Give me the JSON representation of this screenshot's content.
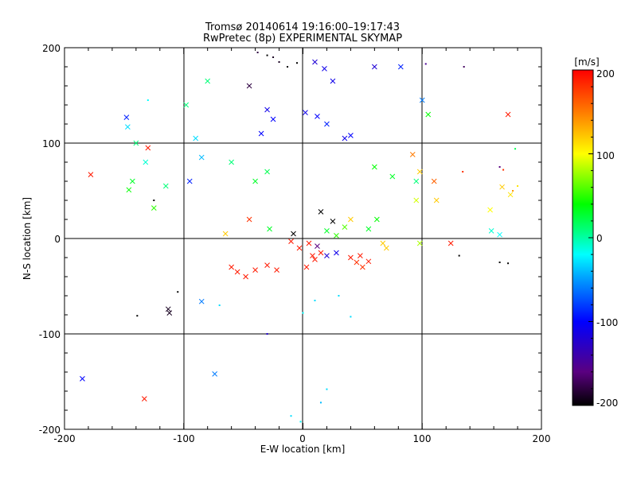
{
  "chart_data": {
    "type": "scatter",
    "title": "Tromsø 20140614 19:16:00–19:17:43",
    "subtitle": "RwPretec (8p) EXPERIMENTAL SKYMAP",
    "xlabel": "E-W location [km]",
    "ylabel": "N-S location [km]",
    "xlim": [
      -200,
      200
    ],
    "ylim": [
      -200,
      200
    ],
    "x_ticks": [
      "-200",
      "-100",
      "0",
      "100",
      "200"
    ],
    "y_ticks": [
      "200",
      "100",
      "0",
      "-100",
      "-200"
    ],
    "grid": true,
    "colorbar": {
      "unit": "[m/s]",
      "min": -200,
      "max": 200,
      "ticks": [
        "200",
        "100",
        "0",
        "-100",
        "-200"
      ]
    },
    "points": [
      {
        "x": -185,
        "y": -147,
        "v": -100,
        "m": "x"
      },
      {
        "x": -133,
        "y": -168,
        "v": 190,
        "m": "x"
      },
      {
        "x": -74,
        "y": -142,
        "v": -60,
        "m": "x"
      },
      {
        "x": -112,
        "y": -78,
        "v": -190,
        "m": "x"
      },
      {
        "x": -113,
        "y": -74,
        "v": -190,
        "m": "x"
      },
      {
        "x": -139,
        "y": -81,
        "v": -200,
        "m": "d"
      },
      {
        "x": -85,
        "y": -66,
        "v": -60,
        "m": "x"
      },
      {
        "x": -105,
        "y": -56,
        "v": -200,
        "m": "d"
      },
      {
        "x": -178,
        "y": 67,
        "v": 190,
        "m": "x"
      },
      {
        "x": -130,
        "y": 95,
        "v": 190,
        "m": "x"
      },
      {
        "x": -148,
        "y": 127,
        "v": -90,
        "m": "x"
      },
      {
        "x": -147,
        "y": 117,
        "v": -30,
        "m": "x"
      },
      {
        "x": -140,
        "y": 100,
        "v": 10,
        "m": "x"
      },
      {
        "x": -146,
        "y": 51,
        "v": 40,
        "m": "x"
      },
      {
        "x": -143,
        "y": 60,
        "v": 30,
        "m": "x"
      },
      {
        "x": -125,
        "y": 32,
        "v": 50,
        "m": "x"
      },
      {
        "x": -132,
        "y": 80,
        "v": -10,
        "m": "x"
      },
      {
        "x": -115,
        "y": 55,
        "v": 10,
        "m": "x"
      },
      {
        "x": 172,
        "y": 130,
        "v": 190,
        "m": "x"
      },
      {
        "x": 174,
        "y": 46,
        "v": 110,
        "m": "x"
      },
      {
        "x": 167,
        "y": 54,
        "v": 120,
        "m": "x"
      },
      {
        "x": 157,
        "y": 30,
        "v": 100,
        "m": "x"
      },
      {
        "x": 165,
        "y": 4,
        "v": -20,
        "m": "x"
      },
      {
        "x": 158,
        "y": 8,
        "v": -10,
        "m": "x"
      },
      {
        "x": 124,
        "y": -5,
        "v": 190,
        "m": "x"
      },
      {
        "x": 112,
        "y": 40,
        "v": 120,
        "m": "x"
      },
      {
        "x": 168,
        "y": 72,
        "v": 180,
        "m": "d"
      },
      {
        "x": 178,
        "y": 94,
        "v": 20,
        "m": "d"
      },
      {
        "x": 165,
        "y": -25,
        "v": -200,
        "m": "d"
      },
      {
        "x": 172,
        "y": -26,
        "v": -200,
        "m": "d"
      },
      {
        "x": 131,
        "y": -18,
        "v": -200,
        "m": "d"
      },
      {
        "x": 176,
        "y": 50,
        "v": 140,
        "m": "d"
      },
      {
        "x": 180,
        "y": 55,
        "v": 110,
        "m": "d"
      },
      {
        "x": 165,
        "y": 75,
        "v": -160,
        "m": "d"
      },
      {
        "x": 134,
        "y": 70,
        "v": 180,
        "m": "d"
      },
      {
        "x": -40,
        "y": -33,
        "v": 190,
        "m": "x"
      },
      {
        "x": -30,
        "y": -28,
        "v": 190,
        "m": "x"
      },
      {
        "x": -55,
        "y": -35,
        "v": 190,
        "m": "x"
      },
      {
        "x": -48,
        "y": -40,
        "v": 190,
        "m": "x"
      },
      {
        "x": -22,
        "y": -33,
        "v": 190,
        "m": "x"
      },
      {
        "x": -60,
        "y": -30,
        "v": 190,
        "m": "x"
      },
      {
        "x": 48,
        "y": -18,
        "v": 190,
        "m": "x"
      },
      {
        "x": 55,
        "y": -24,
        "v": 190,
        "m": "x"
      },
      {
        "x": 50,
        "y": -30,
        "v": 180,
        "m": "x"
      },
      {
        "x": 40,
        "y": -20,
        "v": 190,
        "m": "x"
      },
      {
        "x": 45,
        "y": -25,
        "v": 180,
        "m": "x"
      },
      {
        "x": 3,
        "y": -30,
        "v": 190,
        "m": "x"
      },
      {
        "x": 8,
        "y": -18,
        "v": 190,
        "m": "x"
      },
      {
        "x": -3,
        "y": -10,
        "v": 190,
        "m": "x"
      },
      {
        "x": 5,
        "y": -5,
        "v": 190,
        "m": "x"
      },
      {
        "x": 10,
        "y": -22,
        "v": 190,
        "m": "x"
      },
      {
        "x": 15,
        "y": -15,
        "v": 190,
        "m": "x"
      },
      {
        "x": -10,
        "y": -3,
        "v": 190,
        "m": "x"
      },
      {
        "x": 12,
        "y": -8,
        "v": -160,
        "m": "x"
      },
      {
        "x": 20,
        "y": -18,
        "v": -120,
        "m": "x"
      },
      {
        "x": 28,
        "y": -15,
        "v": -110,
        "m": "x"
      },
      {
        "x": 25,
        "y": 18,
        "v": -200,
        "m": "x"
      },
      {
        "x": 15,
        "y": 28,
        "v": -200,
        "m": "x"
      },
      {
        "x": -8,
        "y": 5,
        "v": -200,
        "m": "x"
      },
      {
        "x": 40,
        "y": 20,
        "v": 120,
        "m": "x"
      },
      {
        "x": 35,
        "y": 12,
        "v": 60,
        "m": "x"
      },
      {
        "x": 55,
        "y": 10,
        "v": 30,
        "m": "x"
      },
      {
        "x": 62,
        "y": 20,
        "v": 40,
        "m": "x"
      },
      {
        "x": 20,
        "y": 8,
        "v": 30,
        "m": "x"
      },
      {
        "x": 28,
        "y": 3,
        "v": 50,
        "m": "x"
      },
      {
        "x": -35,
        "y": 110,
        "v": -100,
        "m": "x"
      },
      {
        "x": -30,
        "y": 135,
        "v": -110,
        "m": "x"
      },
      {
        "x": -25,
        "y": 125,
        "v": -100,
        "m": "x"
      },
      {
        "x": 2,
        "y": 132,
        "v": -110,
        "m": "x"
      },
      {
        "x": 12,
        "y": 128,
        "v": -100,
        "m": "x"
      },
      {
        "x": 20,
        "y": 120,
        "v": -90,
        "m": "x"
      },
      {
        "x": 35,
        "y": 105,
        "v": -110,
        "m": "x"
      },
      {
        "x": 40,
        "y": 108,
        "v": -100,
        "m": "x"
      },
      {
        "x": -45,
        "y": 160,
        "v": -180,
        "m": "x"
      },
      {
        "x": 10,
        "y": 185,
        "v": -120,
        "m": "x"
      },
      {
        "x": 18,
        "y": 178,
        "v": -110,
        "m": "x"
      },
      {
        "x": 25,
        "y": 165,
        "v": -110,
        "m": "x"
      },
      {
        "x": -38,
        "y": 195,
        "v": -180,
        "m": "d"
      },
      {
        "x": -30,
        "y": 192,
        "v": -200,
        "m": "d"
      },
      {
        "x": -25,
        "y": 190,
        "v": -190,
        "m": "d"
      },
      {
        "x": -20,
        "y": 185,
        "v": -190,
        "m": "d"
      },
      {
        "x": -13,
        "y": 180,
        "v": -200,
        "m": "d"
      },
      {
        "x": -5,
        "y": 184,
        "v": -200,
        "m": "d"
      },
      {
        "x": -40,
        "y": 60,
        "v": 30,
        "m": "x"
      },
      {
        "x": -30,
        "y": 70,
        "v": 20,
        "m": "x"
      },
      {
        "x": -60,
        "y": 80,
        "v": 10,
        "m": "x"
      },
      {
        "x": -45,
        "y": 20,
        "v": 180,
        "m": "x"
      },
      {
        "x": -65,
        "y": 5,
        "v": 120,
        "m": "x"
      },
      {
        "x": -28,
        "y": 10,
        "v": 30,
        "m": "x"
      },
      {
        "x": 60,
        "y": 75,
        "v": 40,
        "m": "x"
      },
      {
        "x": 75,
        "y": 65,
        "v": 30,
        "m": "x"
      },
      {
        "x": 95,
        "y": 40,
        "v": 90,
        "m": "x"
      },
      {
        "x": 98,
        "y": -5,
        "v": 80,
        "m": "x"
      },
      {
        "x": 70,
        "y": -10,
        "v": 120,
        "m": "x"
      },
      {
        "x": 67,
        "y": -5,
        "v": 120,
        "m": "x"
      },
      {
        "x": 105,
        "y": 130,
        "v": 40,
        "m": "x"
      },
      {
        "x": 100,
        "y": 145,
        "v": -60,
        "m": "x"
      },
      {
        "x": 95,
        "y": 60,
        "v": 10,
        "m": "x"
      },
      {
        "x": 92,
        "y": 88,
        "v": 150,
        "m": "x"
      },
      {
        "x": 98,
        "y": 70,
        "v": 120,
        "m": "x"
      },
      {
        "x": 110,
        "y": 60,
        "v": 160,
        "m": "x"
      },
      {
        "x": -95,
        "y": 60,
        "v": -90,
        "m": "x"
      },
      {
        "x": -85,
        "y": 85,
        "v": -40,
        "m": "x"
      },
      {
        "x": -90,
        "y": 105,
        "v": -30,
        "m": "x"
      },
      {
        "x": -98,
        "y": 140,
        "v": 10,
        "m": "x"
      },
      {
        "x": -80,
        "y": 165,
        "v": 10,
        "m": "x"
      },
      {
        "x": 60,
        "y": 180,
        "v": -120,
        "m": "x"
      },
      {
        "x": 82,
        "y": 180,
        "v": -90,
        "m": "x"
      },
      {
        "x": 135,
        "y": 180,
        "v": -170,
        "m": "d"
      },
      {
        "x": 103,
        "y": 183,
        "v": -150,
        "m": "d"
      },
      {
        "x": -130,
        "y": 145,
        "v": -20,
        "m": "d"
      },
      {
        "x": -125,
        "y": 40,
        "v": -200,
        "m": "d"
      },
      {
        "x": -70,
        "y": -70,
        "v": -30,
        "m": "d"
      },
      {
        "x": -30,
        "y": -100,
        "v": -120,
        "m": "d"
      },
      {
        "x": 40,
        "y": -82,
        "v": -30,
        "m": "d"
      },
      {
        "x": 20,
        "y": -158,
        "v": -30,
        "m": "d"
      },
      {
        "x": -2,
        "y": -192,
        "v": -20,
        "m": "d"
      },
      {
        "x": -10,
        "y": -186,
        "v": -30,
        "m": "d"
      },
      {
        "x": 15,
        "y": -172,
        "v": -40,
        "m": "d"
      },
      {
        "x": 30,
        "y": -60,
        "v": -30,
        "m": "d"
      },
      {
        "x": 10,
        "y": -65,
        "v": -30,
        "m": "d"
      },
      {
        "x": 0,
        "y": -78,
        "v": -20,
        "m": "d"
      }
    ]
  }
}
